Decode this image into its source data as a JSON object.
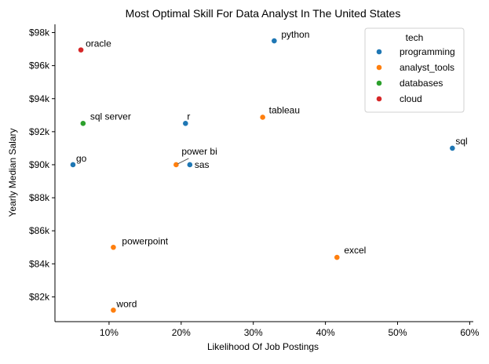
{
  "chart_data": {
    "type": "scatter",
    "title": "Most Optimal Skill For Data Analyst In The United States",
    "xlabel": "Likelihood Of Job Postings",
    "ylabel": "Yearly Median Salary",
    "xlim": [
      2.5,
      60.5
    ],
    "ylim": [
      80500,
      98500
    ],
    "x_ticks": [
      10,
      20,
      30,
      40,
      50,
      60
    ],
    "x_tick_labels": [
      "10%",
      "20%",
      "30%",
      "40%",
      "50%",
      "60%"
    ],
    "y_ticks": [
      82000,
      84000,
      86000,
      88000,
      90000,
      92000,
      94000,
      96000,
      98000
    ],
    "y_tick_labels": [
      "$82k",
      "$84k",
      "$86k",
      "$88k",
      "$90k",
      "$92k",
      "$94k",
      "$96k",
      "$98k"
    ],
    "grid": false,
    "legend": {
      "title": "tech",
      "placement": "top-right",
      "entries": [
        {
          "name": "programming",
          "color": "#1f77b4"
        },
        {
          "name": "analyst_tools",
          "color": "#ff7f0e"
        },
        {
          "name": "databases",
          "color": "#2ca02c"
        },
        {
          "name": "cloud",
          "color": "#d62728"
        }
      ]
    },
    "points": [
      {
        "label": "python",
        "x": 32.9,
        "y": 97500,
        "tech": "programming"
      },
      {
        "label": "oracle",
        "x": 6.1,
        "y": 96950,
        "tech": "cloud"
      },
      {
        "label": "tableau",
        "x": 31.3,
        "y": 92875,
        "tech": "analyst_tools"
      },
      {
        "label": "sql server",
        "x": 6.4,
        "y": 92500,
        "tech": "databases"
      },
      {
        "label": "r",
        "x": 20.6,
        "y": 92500,
        "tech": "programming"
      },
      {
        "label": "sql",
        "x": 57.6,
        "y": 91000,
        "tech": "programming"
      },
      {
        "label": "go",
        "x": 5.0,
        "y": 90000,
        "tech": "programming"
      },
      {
        "label": "power bi",
        "x": 19.3,
        "y": 90000,
        "tech": "analyst_tools"
      },
      {
        "label": "sas",
        "x": 21.2,
        "y": 90000,
        "tech": "programming"
      },
      {
        "label": "powerpoint",
        "x": 10.6,
        "y": 85000,
        "tech": "analyst_tools"
      },
      {
        "label": "excel",
        "x": 41.6,
        "y": 84392,
        "tech": "analyst_tools"
      },
      {
        "label": "word",
        "x": 10.6,
        "y": 81194,
        "tech": "analyst_tools"
      }
    ]
  }
}
